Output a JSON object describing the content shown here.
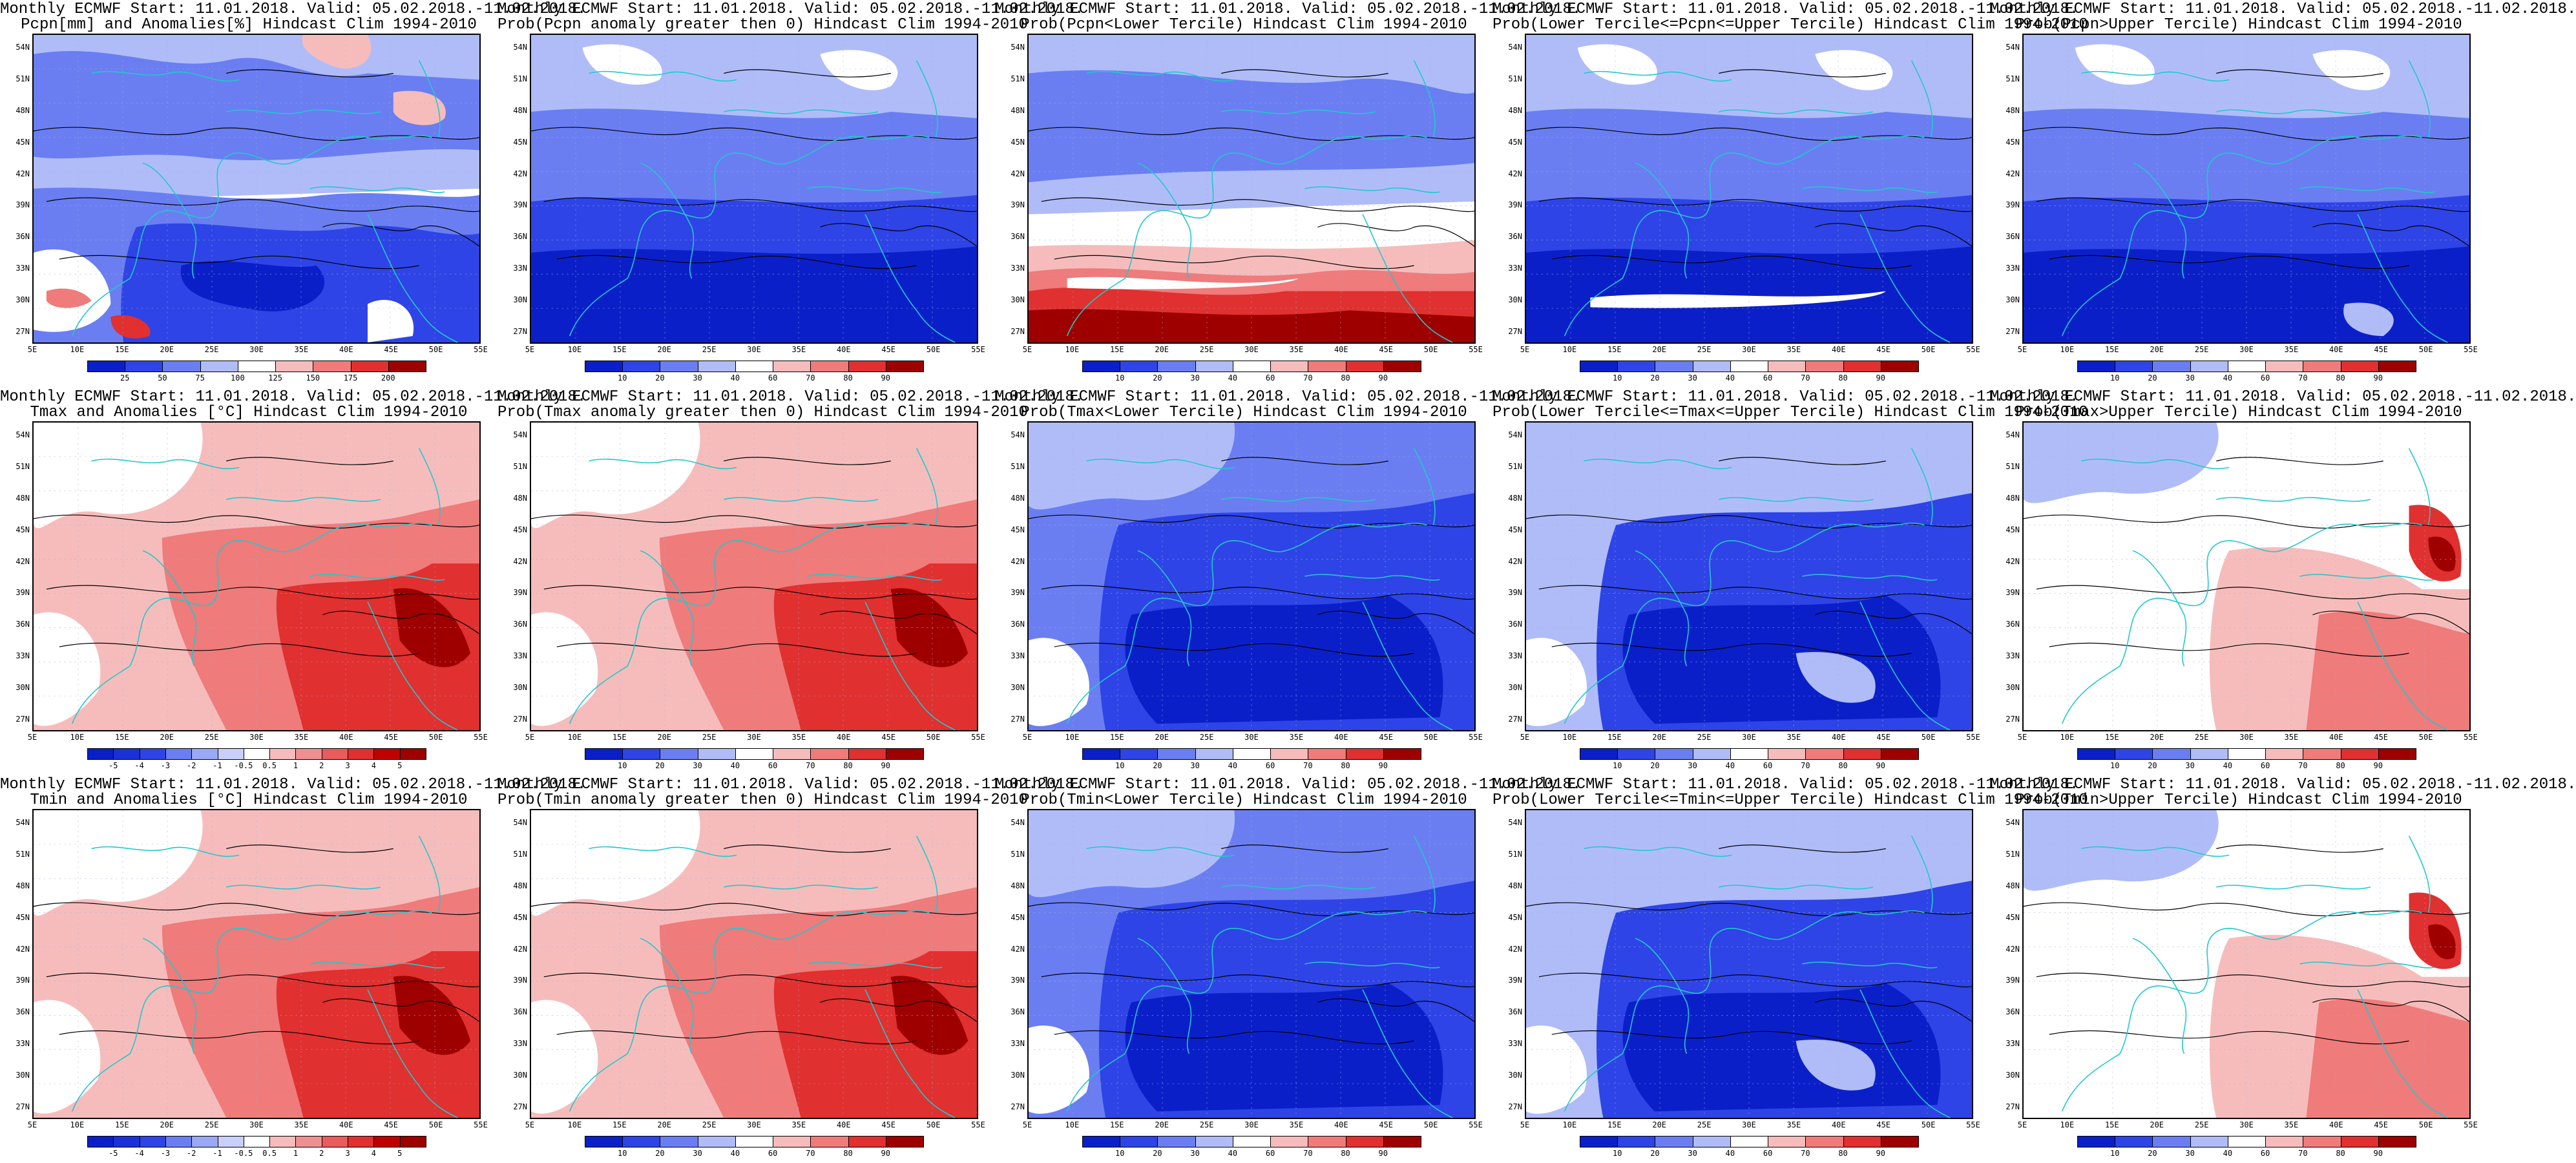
{
  "colors": {
    "deep_blue": "#0b1fc9",
    "blue": "#2e44e6",
    "mid_blue": "#6a7ef2",
    "light_blue": "#b0bcf8",
    "white": "#ffffff",
    "light_red": "#f6bcbc",
    "mid_red": "#ef7b7b",
    "red": "#e03030",
    "deep_red": "#9e0000",
    "coast": "#22c8cc",
    "contour": "#000000"
  },
  "lat_labels": [
    "54N",
    "51N",
    "48N",
    "45N",
    "42N",
    "39N",
    "36N",
    "33N",
    "30N",
    "27N"
  ],
  "lon_labels": [
    "5E",
    "10E",
    "15E",
    "20E",
    "25E",
    "30E",
    "35E",
    "40E",
    "45E",
    "50E",
    "55E"
  ],
  "colorbars": {
    "pcpn_anom": {
      "ticks": [
        "25",
        "50",
        "75",
        "100",
        "125",
        "150",
        "175",
        "200"
      ],
      "colors": [
        "#0b1fc9",
        "#2e44e6",
        "#6a7ef2",
        "#b0bcf8",
        "#ffffff",
        "#f6bcbc",
        "#ef7b7b",
        "#e03030",
        "#9e0000"
      ]
    },
    "prob": {
      "ticks": [
        "10",
        "20",
        "30",
        "40",
        "60",
        "70",
        "80",
        "90"
      ],
      "colors": [
        "#0b1fc9",
        "#2e44e6",
        "#6a7ef2",
        "#b0bcf8",
        "#ffffff",
        "#f6bcbc",
        "#ef7b7b",
        "#e03030",
        "#9e0000"
      ]
    },
    "temp_anom": {
      "ticks": [
        "-5",
        "-4",
        "-3",
        "-2",
        "-1",
        "-0.5",
        "0.5",
        "1",
        "2",
        "3",
        "4",
        "5"
      ],
      "colors": [
        "#0b1fc9",
        "#1a31d8",
        "#2e44e6",
        "#6a7ef2",
        "#9aa8f6",
        "#c8d0fa",
        "#ffffff",
        "#f6bcbc",
        "#ef9090",
        "#e85c5c",
        "#e03030",
        "#c00000",
        "#9e0000"
      ]
    }
  },
  "panels": [
    {
      "line1": "Monthly ECMWF Start: 11.01.2018. Valid: 05.02.2018.-11.02.2018.",
      "line2": "Pcpn[mm] and Anomalies[%] Hindcast Clim 1994-2010",
      "field": "pcpn_anom",
      "scale": "pcpn_anom"
    },
    {
      "line1": "Monthly ECMWF Start: 11.01.2018. Valid: 05.02.2018.-11.02.2018.",
      "line2": "Prob(Pcpn anomaly greater then 0) Hindcast Clim 1994-2010",
      "field": "pcpn_gt0",
      "scale": "prob"
    },
    {
      "line1": "Monthly ECMWF Start: 11.01.2018. Valid: 05.02.2018.-11.02.2018.",
      "line2": "Prob(Pcpn<Lower Tercile) Hindcast Clim 1994-2010",
      "field": "pcpn_lower",
      "scale": "prob"
    },
    {
      "line1": "Monthly ECMWF Start: 11.01.2018. Valid: 05.02.2018.-11.02.2018.",
      "line2": "Prob(Lower Tercile<=Pcpn<=Upper Tercile) Hindcast Clim 1994-2010",
      "field": "pcpn_mid",
      "scale": "prob"
    },
    {
      "line1": "Monthly ECMWF Start: 11.01.2018. Valid: 05.02.2018.-11.02.2018.",
      "line2": "Prob(Pcpn>Upper Tercile) Hindcast Clim 1994-2010",
      "field": "pcpn_upper",
      "scale": "prob"
    },
    {
      "line1": "Monthly ECMWF Start: 11.01.2018. Valid: 05.02.2018.-11.02.2018.",
      "line2": "Tmax and Anomalies [°C] Hindcast Clim 1994-2010",
      "field": "tmax_anom",
      "scale": "temp_anom"
    },
    {
      "line1": "Monthly ECMWF Start: 11.01.2018. Valid: 05.02.2018.-11.02.2018.",
      "line2": "Prob(Tmax anomaly greater then 0) Hindcast Clim 1994-2010",
      "field": "tmax_gt0",
      "scale": "prob"
    },
    {
      "line1": "Monthly ECMWF Start: 11.01.2018. Valid: 05.02.2018.-11.02.2018.",
      "line2": "Prob(Tmax<Lower Tercile) Hindcast Clim 1994-2010",
      "field": "tmax_lower",
      "scale": "prob"
    },
    {
      "line1": "Monthly ECMWF Start: 11.01.2018. Valid: 05.02.2018.-11.02.2018.",
      "line2": "Prob(Lower Tercile<=Tmax<=Upper Tercile) Hindcast Clim 1994-2010",
      "field": "tmax_mid",
      "scale": "prob"
    },
    {
      "line1": "Monthly ECMWF Start: 11.01.2018. Valid: 05.02.2018.-11.02.2018.",
      "line2": "Prob(Tmax>Upper Tercile) Hindcast Clim 1994-2010",
      "field": "tmax_upper",
      "scale": "prob"
    },
    {
      "line1": "Monthly ECMWF Start: 11.01.2018. Valid: 05.02.2018.-11.02.2018.",
      "line2": "Tmin and Anomalies [°C] Hindcast Clim 1994-2010",
      "field": "tmin_anom",
      "scale": "temp_anom"
    },
    {
      "line1": "Monthly ECMWF Start: 11.01.2018. Valid: 05.02.2018.-11.02.2018.",
      "line2": "Prob(Tmin anomaly greater then 0) Hindcast Clim 1994-2010",
      "field": "tmin_gt0",
      "scale": "prob"
    },
    {
      "line1": "Monthly ECMWF Start: 11.01.2018. Valid: 05.02.2018.-11.02.2018.",
      "line2": "Prob(Tmin<Lower Tercile) Hindcast Clim 1994-2010",
      "field": "tmin_lower",
      "scale": "prob"
    },
    {
      "line1": "Monthly ECMWF Start: 11.01.2018. Valid: 05.02.2018.-11.02.2018.",
      "line2": "Prob(Lower Tercile<=Tmin<=Upper Tercile) Hindcast Clim 1994-2010",
      "field": "tmin_mid",
      "scale": "prob"
    },
    {
      "line1": "Monthly ECMWF Start: 11.01.2018. Valid: 05.02.2018.-11.02.2018.",
      "line2": "Prob(Tmin>Upper Tercile) Hindcast Clim 1994-2010",
      "field": "tmin_upper",
      "scale": "prob"
    }
  ]
}
